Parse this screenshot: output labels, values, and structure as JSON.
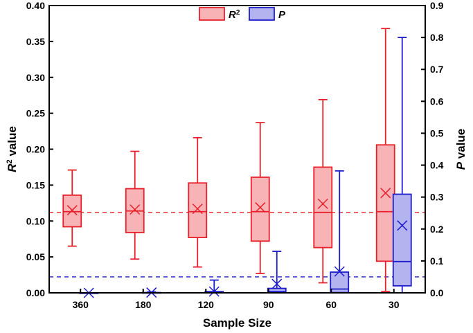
{
  "chart_data": {
    "type": "box",
    "xlabel": "Sample Size",
    "ylabel_left": {
      "main": "R",
      "sup": "2",
      "rest": " value"
    },
    "ylabel_right": {
      "main": "P",
      "rest": " value"
    },
    "categories": [
      "360",
      "180",
      "120",
      "90",
      "60",
      "30"
    ],
    "ylim_left": [
      0,
      0.4
    ],
    "ylim_right": [
      0,
      0.9
    ],
    "yticks_left": [
      "0.00",
      "0.05",
      "0.10",
      "0.15",
      "0.20",
      "0.25",
      "0.30",
      "0.35",
      "0.40"
    ],
    "yticks_right": [
      "0.0",
      "0.1",
      "0.2",
      "0.3",
      "0.4",
      "0.5",
      "0.6",
      "0.7",
      "0.8",
      "0.9"
    ],
    "legend": [
      {
        "label": "R",
        "sup": "2",
        "color": "#e8202a",
        "fill": "#f7b3b6"
      },
      {
        "label": "P",
        "sup": "",
        "color": "#1c1ccc",
        "fill": "#b3b3ef"
      }
    ],
    "reference_lines": [
      {
        "series": "R2",
        "axis": "left",
        "value": 0.112,
        "color": "#e8202a"
      },
      {
        "series": "P",
        "axis": "right",
        "value": 0.05,
        "color": "#1c1ccc"
      }
    ],
    "series": [
      {
        "name": "R2",
        "axis": "left",
        "color": "#e8202a",
        "fill": "#f7b3b6",
        "boxes": [
          {
            "min": 0.065,
            "q1": 0.092,
            "median": 0.113,
            "q3": 0.136,
            "max": 0.171,
            "mean": 0.115
          },
          {
            "min": 0.047,
            "q1": 0.084,
            "median": 0.114,
            "q3": 0.145,
            "max": 0.197,
            "mean": 0.116
          },
          {
            "min": 0.036,
            "q1": 0.077,
            "median": 0.113,
            "q3": 0.153,
            "max": 0.216,
            "mean": 0.117
          },
          {
            "min": 0.027,
            "q1": 0.072,
            "median": 0.113,
            "q3": 0.161,
            "max": 0.237,
            "mean": 0.119
          },
          {
            "min": 0.014,
            "q1": 0.063,
            "median": 0.112,
            "q3": 0.175,
            "max": 0.269,
            "mean": 0.124
          },
          {
            "min": 0.002,
            "q1": 0.044,
            "median": 0.113,
            "q3": 0.206,
            "max": 0.368,
            "mean": 0.139
          }
        ]
      },
      {
        "name": "P",
        "axis": "right",
        "color": "#1c1ccc",
        "fill": "#b3b3ef",
        "boxes": [
          {
            "min": 0.0,
            "q1": 0.0,
            "median": 0.0,
            "q3": 0.0,
            "max": 0.0,
            "mean": 0.0
          },
          {
            "min": 0.0,
            "q1": 0.0,
            "median": 0.0,
            "q3": 0.001,
            "max": 0.003,
            "mean": 0.001
          },
          {
            "min": 0.0,
            "q1": 0.0,
            "median": 0.001,
            "q3": 0.004,
            "max": 0.04,
            "mean": 0.004
          },
          {
            "min": 0.0,
            "q1": 0.0,
            "median": 0.004,
            "q3": 0.014,
            "max": 0.13,
            "mean": 0.028
          },
          {
            "min": 0.0,
            "q1": 0.001,
            "median": 0.012,
            "q3": 0.065,
            "max": 0.382,
            "mean": 0.067
          },
          {
            "min": 0.0,
            "q1": 0.022,
            "median": 0.098,
            "q3": 0.309,
            "max": 0.8,
            "mean": 0.211
          }
        ]
      }
    ]
  }
}
